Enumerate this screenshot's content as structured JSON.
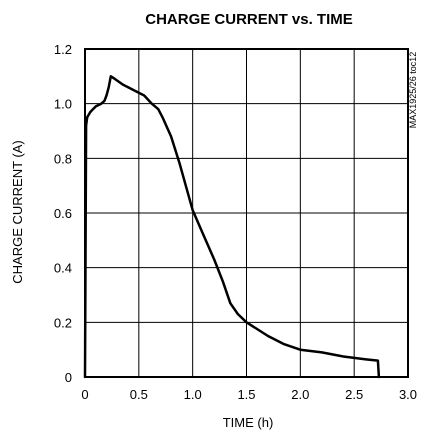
{
  "chart_data": {
    "type": "line",
    "title": "CHARGE CURRENT vs. TIME",
    "xlabel": "TIME (h)",
    "ylabel": "CHARGE CURRENT (A)",
    "part_code": "MAX1925/26 toc12",
    "xlim": [
      0,
      3.0
    ],
    "ylim": [
      0,
      1.2
    ],
    "x_ticks": [
      "0",
      "0.5",
      "1.0",
      "1.5",
      "2.0",
      "2.5",
      "3.0"
    ],
    "y_ticks": [
      "0",
      "0.2",
      "0.4",
      "0.6",
      "0.8",
      "1.0",
      "1.2"
    ],
    "grid": true,
    "series": [
      {
        "color": "#000000",
        "points": [
          [
            0.0,
            0.0
          ],
          [
            0.01,
            0.92
          ],
          [
            0.02,
            0.95
          ],
          [
            0.05,
            0.97
          ],
          [
            0.1,
            0.99
          ],
          [
            0.15,
            1.0
          ],
          [
            0.18,
            1.01
          ],
          [
            0.2,
            1.03
          ],
          [
            0.22,
            1.06
          ],
          [
            0.24,
            1.1
          ],
          [
            0.28,
            1.09
          ],
          [
            0.35,
            1.07
          ],
          [
            0.45,
            1.05
          ],
          [
            0.55,
            1.03
          ],
          [
            0.62,
            1.0
          ],
          [
            0.68,
            0.98
          ],
          [
            0.72,
            0.95
          ],
          [
            0.8,
            0.88
          ],
          [
            0.88,
            0.78
          ],
          [
            0.95,
            0.68
          ],
          [
            1.0,
            0.61
          ],
          [
            1.1,
            0.52
          ],
          [
            1.2,
            0.43
          ],
          [
            1.28,
            0.35
          ],
          [
            1.35,
            0.27
          ],
          [
            1.42,
            0.23
          ],
          [
            1.5,
            0.2
          ],
          [
            1.7,
            0.15
          ],
          [
            1.85,
            0.12
          ],
          [
            2.0,
            0.1
          ],
          [
            2.2,
            0.09
          ],
          [
            2.4,
            0.075
          ],
          [
            2.6,
            0.065
          ],
          [
            2.72,
            0.06
          ],
          [
            2.73,
            0.0
          ]
        ]
      }
    ]
  }
}
